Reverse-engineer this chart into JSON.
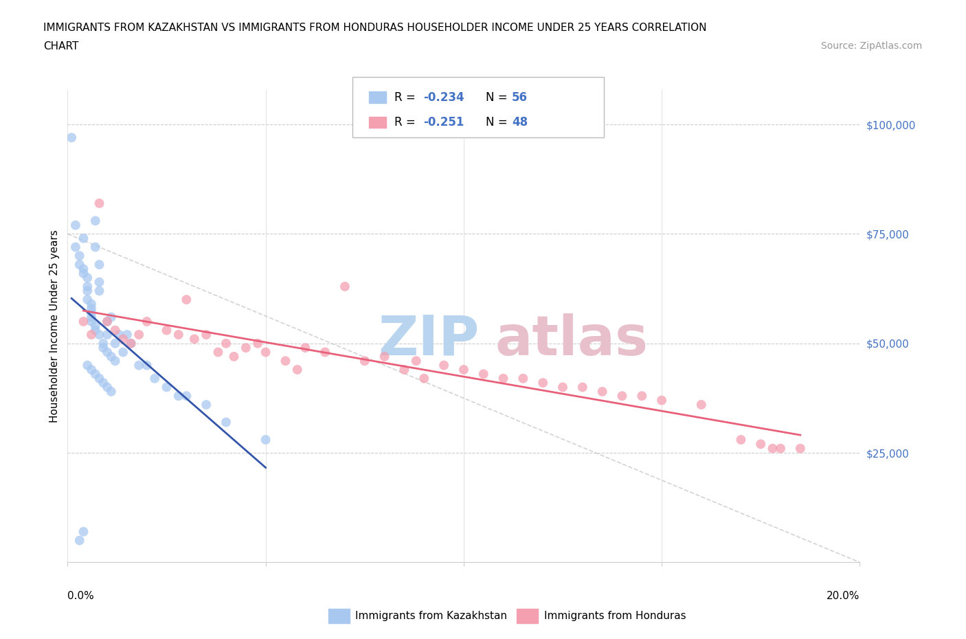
{
  "title_line1": "IMMIGRANTS FROM KAZAKHSTAN VS IMMIGRANTS FROM HONDURAS HOUSEHOLDER INCOME UNDER 25 YEARS CORRELATION",
  "title_line2": "CHART",
  "source": "Source: ZipAtlas.com",
  "ylabel": "Householder Income Under 25 years",
  "legend_label1": "Immigrants from Kazakhstan",
  "legend_label2": "Immigrants from Honduras",
  "R1": -0.234,
  "N1": 56,
  "R2": -0.251,
  "N2": 48,
  "color_kaz": "#A8C8F0",
  "color_hon": "#F4A0B0",
  "color_kaz_line": "#3355AA",
  "color_hon_line": "#E8607A",
  "color_ytick": "#4472C4",
  "color_diag": "#CCCCCC",
  "xlim": [
    0,
    0.2
  ],
  "ylim": [
    0,
    108000
  ],
  "ytick_positions": [
    25000,
    50000,
    75000,
    100000
  ],
  "ytick_labels": [
    "$25,000",
    "$50,000",
    "$75,000",
    "$100,000"
  ],
  "watermark_zip_color": "#B8D4EE",
  "watermark_atlas_color": "#E8C0CC",
  "kaz_x": [
    0.001,
    0.002,
    0.002,
    0.003,
    0.003,
    0.004,
    0.004,
    0.004,
    0.005,
    0.005,
    0.005,
    0.005,
    0.006,
    0.006,
    0.006,
    0.006,
    0.006,
    0.007,
    0.007,
    0.007,
    0.007,
    0.008,
    0.008,
    0.008,
    0.008,
    0.009,
    0.009,
    0.01,
    0.01,
    0.01,
    0.011,
    0.011,
    0.012,
    0.012,
    0.013,
    0.014,
    0.015,
    0.016,
    0.018,
    0.02,
    0.022,
    0.025,
    0.028,
    0.03,
    0.035,
    0.04,
    0.05,
    0.005,
    0.006,
    0.007,
    0.008,
    0.009,
    0.01,
    0.011,
    0.003,
    0.004
  ],
  "kaz_y": [
    97000,
    77000,
    72000,
    70000,
    68000,
    67000,
    66000,
    74000,
    65000,
    63000,
    62000,
    60000,
    59000,
    58000,
    57000,
    56000,
    55000,
    78000,
    72000,
    54000,
    53000,
    68000,
    64000,
    62000,
    52000,
    50000,
    49000,
    55000,
    52000,
    48000,
    56000,
    47000,
    50000,
    46000,
    52000,
    48000,
    52000,
    50000,
    45000,
    45000,
    42000,
    40000,
    38000,
    38000,
    36000,
    32000,
    28000,
    45000,
    44000,
    43000,
    42000,
    41000,
    40000,
    39000,
    5000,
    7000
  ],
  "hon_x": [
    0.004,
    0.006,
    0.008,
    0.01,
    0.012,
    0.014,
    0.016,
    0.018,
    0.02,
    0.025,
    0.028,
    0.03,
    0.032,
    0.035,
    0.038,
    0.04,
    0.042,
    0.045,
    0.048,
    0.05,
    0.055,
    0.058,
    0.06,
    0.065,
    0.07,
    0.075,
    0.08,
    0.085,
    0.088,
    0.09,
    0.095,
    0.1,
    0.105,
    0.11,
    0.115,
    0.12,
    0.125,
    0.13,
    0.135,
    0.14,
    0.145,
    0.15,
    0.16,
    0.17,
    0.175,
    0.178,
    0.18,
    0.185
  ],
  "hon_y": [
    55000,
    52000,
    82000,
    55000,
    53000,
    51000,
    50000,
    52000,
    55000,
    53000,
    52000,
    60000,
    51000,
    52000,
    48000,
    50000,
    47000,
    49000,
    50000,
    48000,
    46000,
    44000,
    49000,
    48000,
    63000,
    46000,
    47000,
    44000,
    46000,
    42000,
    45000,
    44000,
    43000,
    42000,
    42000,
    41000,
    40000,
    40000,
    39000,
    38000,
    38000,
    37000,
    36000,
    28000,
    27000,
    26000,
    26000,
    26000
  ]
}
